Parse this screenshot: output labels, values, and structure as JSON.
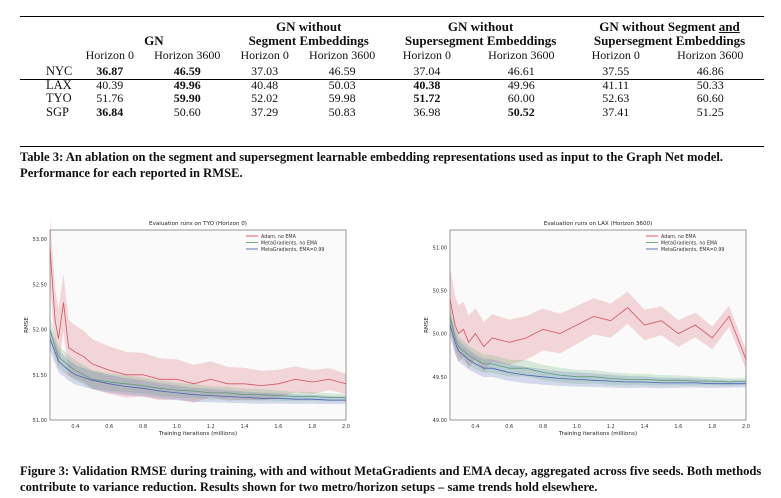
{
  "table": {
    "group_headers": [
      {
        "lines": [
          "GN"
        ]
      },
      {
        "lines": [
          "GN without",
          "Segment Embeddings"
        ]
      },
      {
        "lines": [
          "GN without",
          "Supersegment Embeddings"
        ]
      },
      {
        "lines": [
          "GN without Segment and",
          "Supersegment Embeddings"
        ]
      }
    ],
    "sub_headers": [
      "Horizon 0",
      "Horizon 3600",
      "Horizon 0",
      "Horizon 3600",
      "Horizon 0",
      "Horizon 3600",
      "Horizon 0",
      "Horizon 3600"
    ],
    "rows": [
      {
        "city": "NYC",
        "values": [
          "36.87",
          "46.59",
          "37.03",
          "46.59",
          "37.04",
          "46.61",
          "37.55",
          "46.86"
        ],
        "bold": [
          0,
          1
        ]
      },
      {
        "city": "LAX",
        "values": [
          "40.39",
          "49.96",
          "40.48",
          "50.03",
          "40.38",
          "49.96",
          "41.11",
          "50.33"
        ],
        "bold": [
          1,
          4
        ]
      },
      {
        "city": "TYO",
        "values": [
          "51.76",
          "59.90",
          "52.02",
          "59.98",
          "51.72",
          "60.00",
          "52.63",
          "60.60"
        ],
        "bold": [
          1,
          4
        ]
      },
      {
        "city": "SGP",
        "values": [
          "36.84",
          "50.60",
          "37.29",
          "50.83",
          "36.98",
          "50.52",
          "37.41",
          "51.25"
        ],
        "bold": [
          0,
          5
        ]
      }
    ]
  },
  "table_caption": "Table 3: An ablation on the segment and supersegment learnable embedding representations used as input to the Graph Net model. Performance for each reported in RMSE.",
  "figure_caption": "Figure 3: Validation RMSE during training, with and without MetaGradients and EMA decay, aggregated across five seeds. Both methods contribute to variance reduction. Results shown for two metro/horizon setups – same trends hold elsewhere.",
  "colors": {
    "adam": "#d1545e",
    "meta_no_ema": "#5fab6e",
    "meta_ema": "#4a62b3"
  },
  "chart_data": [
    {
      "type": "line",
      "title": "Evaluation runs on TYO (Horizon 0)",
      "xlabel": "Training iterations (millions)",
      "ylabel": "RMSE",
      "xlim": [
        0.25,
        2.0
      ],
      "ylim": [
        51.0,
        53.1
      ],
      "xticks": [
        "0.4",
        "0.6",
        "0.8",
        "1.0",
        "1.2",
        "1.4",
        "1.6",
        "1.8",
        "2.0"
      ],
      "yticks": [
        "51.00",
        "51.50",
        "52.00",
        "52.50",
        "53.00"
      ],
      "legend_position": "top-right",
      "grid": false,
      "series": [
        {
          "name": "Adam, no EMA",
          "color": "#d1545e",
          "x": [
            0.25,
            0.28,
            0.3,
            0.33,
            0.36,
            0.4,
            0.45,
            0.5,
            0.6,
            0.7,
            0.8,
            0.9,
            1.0,
            1.1,
            1.2,
            1.3,
            1.4,
            1.5,
            1.6,
            1.7,
            1.8,
            1.9,
            2.0
          ],
          "y": [
            52.9,
            52.1,
            51.9,
            52.3,
            51.8,
            51.75,
            51.7,
            51.62,
            51.55,
            51.5,
            51.5,
            51.45,
            51.45,
            51.4,
            51.45,
            51.4,
            51.4,
            51.38,
            51.4,
            51.45,
            51.42,
            51.45,
            51.4
          ]
        },
        {
          "name": "MetaGradients, no EMA",
          "color": "#5fab6e",
          "x": [
            0.25,
            0.28,
            0.3,
            0.33,
            0.36,
            0.4,
            0.45,
            0.5,
            0.6,
            0.7,
            0.8,
            0.9,
            1.0,
            1.1,
            1.2,
            1.3,
            1.4,
            1.5,
            1.6,
            1.7,
            1.8,
            1.9,
            2.0
          ],
          "y": [
            52.0,
            51.8,
            51.7,
            51.65,
            51.6,
            51.55,
            51.5,
            51.45,
            51.42,
            51.4,
            51.38,
            51.35,
            51.33,
            51.32,
            51.3,
            51.3,
            51.28,
            51.28,
            51.27,
            51.26,
            51.26,
            51.25,
            51.25
          ]
        },
        {
          "name": "MetaGradients, EMA=0.99",
          "color": "#4a62b3",
          "x": [
            0.25,
            0.28,
            0.3,
            0.33,
            0.36,
            0.4,
            0.45,
            0.5,
            0.6,
            0.7,
            0.8,
            0.9,
            1.0,
            1.1,
            1.2,
            1.3,
            1.4,
            1.5,
            1.6,
            1.7,
            1.8,
            1.9,
            2.0
          ],
          "y": [
            51.9,
            51.75,
            51.65,
            51.6,
            51.55,
            51.5,
            51.47,
            51.44,
            51.4,
            51.37,
            51.35,
            51.32,
            51.3,
            51.28,
            51.27,
            51.26,
            51.25,
            51.24,
            51.24,
            51.23,
            51.23,
            51.22,
            51.22
          ]
        }
      ]
    },
    {
      "type": "line",
      "title": "Evaluation runs on LAX (Horizon 3600)",
      "xlabel": "Training iterations (millions)",
      "ylabel": "RMSE",
      "xlim": [
        0.25,
        2.0
      ],
      "ylim": [
        49.0,
        51.2
      ],
      "xticks": [
        "0.4",
        "0.6",
        "0.8",
        "1.0",
        "1.2",
        "1.4",
        "1.6",
        "1.8",
        "2.0"
      ],
      "yticks": [
        "49.00",
        "49.50",
        "50.00",
        "50.50",
        "51.00"
      ],
      "legend_position": "top-right",
      "grid": false,
      "series": [
        {
          "name": "Adam, no EMA",
          "color": "#d1545e",
          "x": [
            0.25,
            0.28,
            0.3,
            0.33,
            0.36,
            0.4,
            0.45,
            0.5,
            0.6,
            0.7,
            0.8,
            0.9,
            1.0,
            1.1,
            1.2,
            1.3,
            1.4,
            1.5,
            1.6,
            1.7,
            1.8,
            1.9,
            2.0
          ],
          "y": [
            50.4,
            50.1,
            50.0,
            50.05,
            49.9,
            50.0,
            49.85,
            49.95,
            49.9,
            49.95,
            50.05,
            50.0,
            50.1,
            50.2,
            50.15,
            50.3,
            50.1,
            50.15,
            50.0,
            50.1,
            49.95,
            50.2,
            49.7
          ]
        },
        {
          "name": "MetaGradients, no EMA",
          "color": "#5fab6e",
          "x": [
            0.25,
            0.28,
            0.3,
            0.33,
            0.36,
            0.4,
            0.45,
            0.5,
            0.6,
            0.7,
            0.8,
            0.9,
            1.0,
            1.1,
            1.2,
            1.3,
            1.4,
            1.5,
            1.6,
            1.7,
            1.8,
            1.9,
            2.0
          ],
          "y": [
            50.2,
            49.95,
            49.85,
            49.8,
            49.75,
            49.7,
            49.65,
            49.65,
            49.6,
            49.6,
            49.55,
            49.52,
            49.5,
            49.5,
            49.48,
            49.47,
            49.47,
            49.46,
            49.46,
            49.45,
            49.45,
            49.44,
            49.45
          ]
        },
        {
          "name": "MetaGradients, EMA=0.99",
          "color": "#4a62b3",
          "x": [
            0.25,
            0.28,
            0.3,
            0.33,
            0.36,
            0.4,
            0.45,
            0.5,
            0.6,
            0.7,
            0.8,
            0.9,
            1.0,
            1.1,
            1.2,
            1.3,
            1.4,
            1.5,
            1.6,
            1.7,
            1.8,
            1.9,
            2.0
          ],
          "y": [
            50.1,
            49.9,
            49.8,
            49.75,
            49.7,
            49.65,
            49.6,
            49.6,
            49.55,
            49.52,
            49.5,
            49.48,
            49.47,
            49.46,
            49.45,
            49.44,
            49.44,
            49.43,
            49.43,
            49.43,
            49.42,
            49.42,
            49.42
          ]
        }
      ]
    }
  ]
}
